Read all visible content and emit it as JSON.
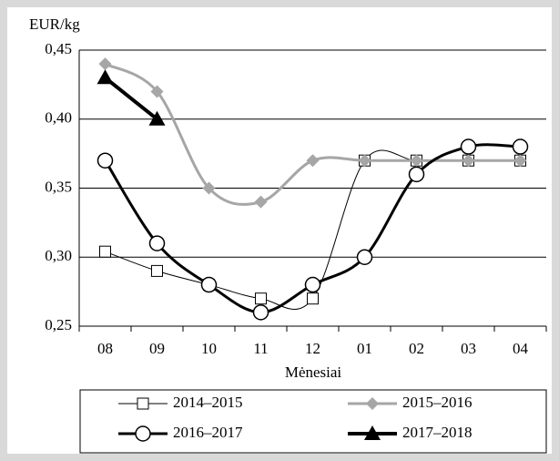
{
  "chart_data": {
    "type": "line",
    "ylabel": "EUR/kg",
    "xlabel": "Mėnesiai",
    "categories": [
      "08",
      "09",
      "10",
      "11",
      "12",
      "01",
      "02",
      "03",
      "04"
    ],
    "ylim": [
      0.25,
      0.45
    ],
    "yticks": [
      {
        "value": 0.25,
        "label": "0,25"
      },
      {
        "value": 0.3,
        "label": "0,30"
      },
      {
        "value": 0.35,
        "label": "0,35"
      },
      {
        "value": 0.4,
        "label": "0,40"
      },
      {
        "value": 0.45,
        "label": "0,45"
      }
    ],
    "grid": true,
    "series": [
      {
        "name": "2014–2015",
        "color": "#000000",
        "marker": "square",
        "width": 1,
        "values": [
          0.304,
          0.29,
          0.28,
          0.27,
          0.27,
          0.37,
          0.37,
          0.37,
          0.37
        ]
      },
      {
        "name": "2015–2016",
        "color": "#a6a6a6",
        "marker": "diamond",
        "width": 3,
        "values": [
          0.44,
          0.42,
          0.35,
          0.34,
          0.37,
          0.37,
          0.37,
          0.37,
          0.37
        ]
      },
      {
        "name": "2016–2017",
        "color": "#000000",
        "marker": "circle",
        "width": 3,
        "values": [
          0.37,
          0.31,
          0.28,
          0.26,
          0.28,
          0.3,
          0.36,
          0.38,
          0.38
        ]
      },
      {
        "name": "2017–2018",
        "color": "#000000",
        "marker": "triangle",
        "width": 4,
        "values": [
          0.43,
          0.4,
          null,
          null,
          null,
          null,
          null,
          null,
          null
        ]
      }
    ]
  }
}
